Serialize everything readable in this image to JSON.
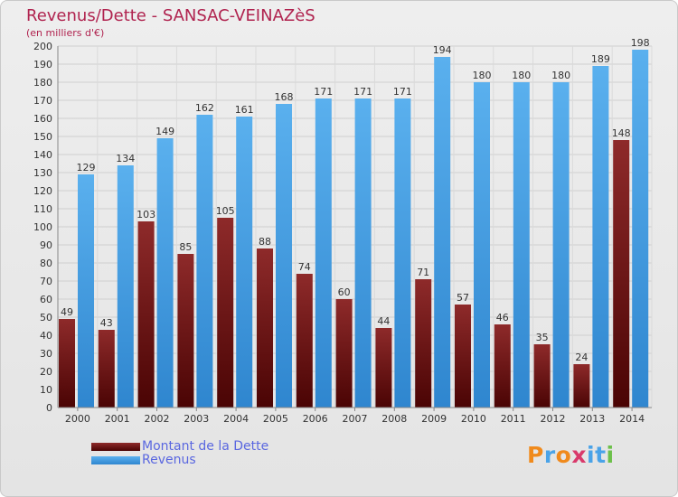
{
  "title": "Revenus/Dette - SANSAC-VEINAZèS",
  "subtitle": "(en milliers d'€)",
  "colors": {
    "dette": "#7a1717",
    "revenus": "#4aa3e8",
    "title": "#b0234f",
    "legend_text": "#5a67e0"
  },
  "legend": [
    {
      "label": "Montant de la Dette",
      "color": "#7a1717"
    },
    {
      "label": "Revenus",
      "color": "#4aa3e8"
    }
  ],
  "logo": {
    "letters": [
      "P",
      "r",
      "o",
      "x",
      "i",
      "t",
      "i"
    ],
    "colors": [
      "#f08a1c",
      "#4aa3e8",
      "#f08a1c",
      "#d93a6b",
      "#4aa3e8",
      "#4aa3e8",
      "#6cc04a"
    ]
  },
  "chart_data": {
    "type": "bar",
    "categories": [
      "2000",
      "2001",
      "2002",
      "2003",
      "2004",
      "2005",
      "2006",
      "2007",
      "2008",
      "2009",
      "2010",
      "2011",
      "2012",
      "2013",
      "2014"
    ],
    "series": [
      {
        "name": "Montant de la Dette",
        "values": [
          49,
          43,
          103,
          85,
          105,
          88,
          74,
          60,
          44,
          71,
          57,
          46,
          35,
          24,
          148
        ]
      },
      {
        "name": "Revenus",
        "values": [
          129,
          134,
          149,
          162,
          161,
          168,
          171,
          171,
          171,
          194,
          180,
          180,
          180,
          189,
          198
        ]
      }
    ],
    "ylim": [
      0,
      200
    ],
    "yticks": [
      0,
      10,
      20,
      30,
      40,
      50,
      60,
      70,
      80,
      90,
      100,
      110,
      120,
      130,
      140,
      150,
      160,
      170,
      180,
      190,
      200
    ],
    "grid": true
  }
}
